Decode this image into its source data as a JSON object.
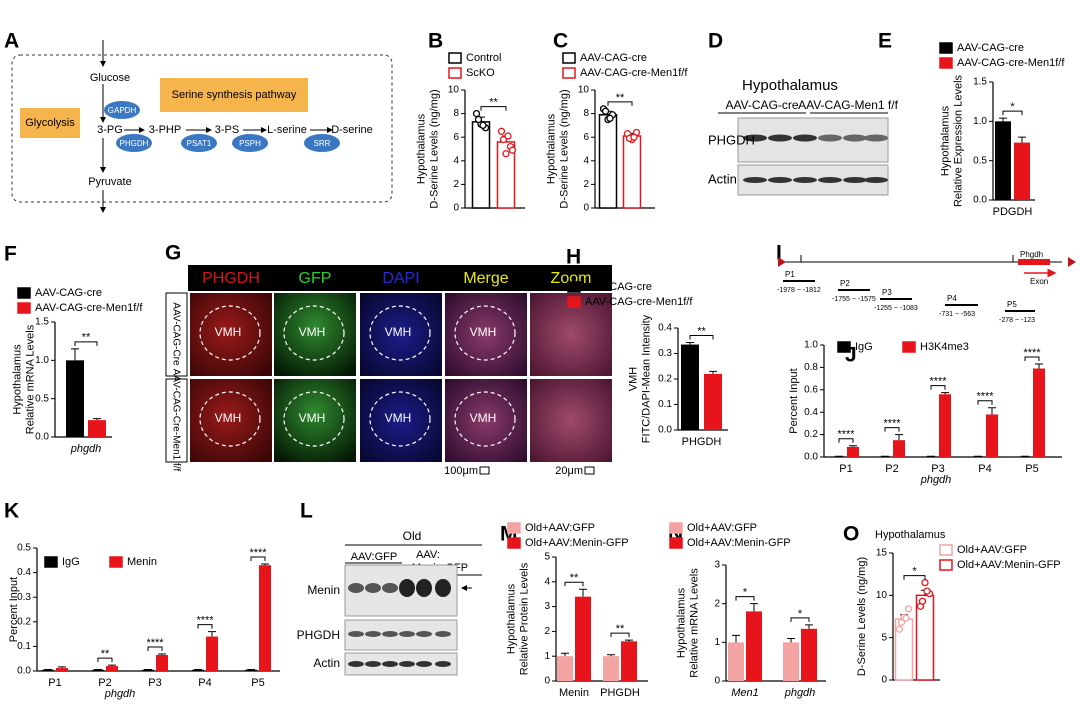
{
  "diagram": {
    "label": "A",
    "glycolysis_label": "Glycolysis",
    "pathway_label": "Serine synthesis pathway",
    "metabolites": [
      "Glucose",
      "3-PG",
      "3-PHP",
      "3-PS",
      "L-serine",
      "D-serine",
      "Pyruvate"
    ],
    "enzymes": [
      "GAPDH",
      "PHGDH",
      "PSAT1",
      "PSPH",
      "SRR"
    ]
  },
  "blot_d": {
    "label": "D",
    "title": "Hypothalamus",
    "groups": [
      "AAV-CAG-cre",
      "AAV-CAG-Men1 f/f"
    ],
    "proteins": [
      "PHGDH",
      "Actin"
    ]
  },
  "images_g": {
    "label": "G",
    "channels": [
      "PHGDH",
      "GFP",
      "DAPI",
      "Merge",
      "Zoom"
    ],
    "rows": [
      "AAV-CAG-Cre",
      "AAV-CAG-Cre-Men1 f/f"
    ],
    "region": "VMH",
    "scale_bars": [
      "100μm",
      "20μm"
    ]
  },
  "gene_map_i": {
    "label": "I",
    "gene": "Phgdh",
    "exon": "Exon",
    "primers": [
      {
        "name": "P1",
        "range": "-1978 ~ -1812"
      },
      {
        "name": "P2",
        "range": "-1755 ~ -1575"
      },
      {
        "name": "P3",
        "range": "-1255 ~ -1083"
      },
      {
        "name": "P4",
        "range": "-731 ~ -563"
      },
      {
        "name": "P5",
        "range": "-278 ~ -123"
      }
    ]
  },
  "blot_l": {
    "label": "L",
    "title": "Old",
    "groups": [
      [
        "AAV:GFP"
      ],
      [
        "AAV:",
        "Menin-GFP"
      ]
    ],
    "proteins": [
      "Menin",
      "PHGDH",
      "Actin"
    ]
  },
  "chart_data": [
    {
      "label": "B",
      "type": "bar",
      "ylabel": [
        "Hypothalamus",
        "D-Serine Levels (ng/mg)"
      ],
      "categories": [
        null
      ],
      "series": [
        {
          "name": "Control",
          "color": "#000000",
          "fill": "#ffffff",
          "values": [
            7.3
          ],
          "errors": [
            0.4
          ],
          "points": [
            8.0,
            7.1,
            6.8,
            7.5,
            7.0
          ]
        },
        {
          "name": "ScKO",
          "color": "#e8141c",
          "fill": "#ffffff",
          "values": [
            5.6
          ],
          "errors": [
            0.5
          ],
          "points": [
            6.5,
            4.6,
            5.2,
            5.8,
            6.1,
            4.9
          ]
        }
      ],
      "ylim": [
        0,
        10
      ],
      "yticks": [
        0,
        2,
        4,
        6,
        8,
        10
      ],
      "annotations": [
        "**"
      ]
    },
    {
      "label": "C",
      "type": "bar",
      "ylabel": [
        "Hypothalamus",
        "D-Serine Levels (ng/mg)"
      ],
      "categories": [
        null
      ],
      "series": [
        {
          "name": "AAV-CAG-cre",
          "color": "#000000",
          "fill": "#ffffff",
          "values": [
            7.9
          ],
          "errors": [
            0.3
          ],
          "points": [
            8.4,
            7.5,
            7.9,
            8.2,
            7.6
          ]
        },
        {
          "name": "AAV-CAG-cre-Men1f/f",
          "color": "#e8141c",
          "fill": "#ffffff",
          "values": [
            6.1
          ],
          "errors": [
            0.2
          ],
          "points": [
            6.3,
            5.8,
            6.4,
            5.9,
            6.0
          ]
        }
      ],
      "ylim": [
        0,
        10
      ],
      "yticks": [
        0,
        2,
        4,
        6,
        8,
        10
      ],
      "annotations": [
        "**"
      ]
    },
    {
      "label": "E",
      "type": "bar",
      "ylabel": [
        "Hypothalamus",
        "Relative Expression Levels"
      ],
      "categories": [
        "PDGDH"
      ],
      "series": [
        {
          "name": "AAV-CAG-cre",
          "color": "#000000",
          "values": [
            1.0
          ],
          "errors": [
            0.04
          ]
        },
        {
          "name": "AAV-CAG-cre-Men1f/f",
          "color": "#e8141c",
          "values": [
            0.73
          ],
          "errors": [
            0.07
          ]
        }
      ],
      "ylim": [
        0,
        1.5
      ],
      "yticks": [
        {
          "value": 0,
          "label": "0.0"
        },
        0.5,
        {
          "value": 1,
          "label": "1.0"
        },
        1.5
      ],
      "annotations": [
        "*"
      ]
    },
    {
      "label": "F",
      "type": "bar",
      "ylabel": [
        "Hypothalamus",
        "Relative mRNA Levels"
      ],
      "categories": [
        "phgdh"
      ],
      "series": [
        {
          "name": "AAV-CAG-cre",
          "color": "#000000",
          "values": [
            1.0
          ],
          "errors": [
            0.15
          ]
        },
        {
          "name": "AAV-CAG-cre-Men1f/f",
          "color": "#e8141c",
          "values": [
            0.22
          ],
          "errors": [
            0.02
          ]
        }
      ],
      "ylim": [
        0,
        1.5
      ],
      "yticks": [
        {
          "value": 0,
          "label": "0.0"
        },
        0.5,
        {
          "value": 1,
          "label": "1.0"
        },
        1.5
      ],
      "annotations": [
        "**"
      ]
    },
    {
      "label": "H",
      "type": "bar",
      "ylabel": [
        "VMH",
        "FITC/DAPI-Mean Intensity"
      ],
      "categories": [
        "PHGDH"
      ],
      "series": [
        {
          "name": "AAV-CAG-cre",
          "color": "#000000",
          "values": [
            0.335
          ],
          "errors": [
            0.008
          ]
        },
        {
          "name": "AAV-CAG-cre-Men1f/f",
          "color": "#e8141c",
          "values": [
            0.22
          ],
          "errors": [
            0.01
          ]
        }
      ],
      "ylim": [
        0,
        0.4
      ],
      "yticks": [
        {
          "value": 0,
          "label": "0.0"
        },
        0.1,
        0.2,
        0.3,
        0.4
      ],
      "annotations": [
        "**"
      ]
    },
    {
      "label": "J",
      "type": "bar",
      "ylabel": "Percent Input",
      "xlabel": "phgdh",
      "categories": [
        "P1",
        "P2",
        "P3",
        "P4",
        "P5"
      ],
      "series": [
        {
          "name": "IgG",
          "color": "#000000",
          "values": [
            0.005,
            0.005,
            0.005,
            0.005,
            0.005
          ],
          "errors": [
            0.002,
            0.002,
            0.002,
            0.002,
            0.002
          ]
        },
        {
          "name": "H3K4me3",
          "color": "#e8141c",
          "values": [
            0.09,
            0.15,
            0.56,
            0.38,
            0.79
          ],
          "errors": [
            0.01,
            0.05,
            0.015,
            0.06,
            0.04
          ]
        }
      ],
      "ylim": [
        0,
        1
      ],
      "yticks": [
        {
          "value": 0,
          "label": "0.0"
        },
        0.2,
        0.4,
        0.6,
        0.8,
        {
          "value": 1,
          "label": "1.0"
        }
      ],
      "annotations": [
        "****",
        "****",
        "****",
        "****",
        "****"
      ]
    },
    {
      "label": "K",
      "type": "bar",
      "ylabel": "Percent Input",
      "xlabel": "phgdh",
      "categories": [
        "P1",
        "P2",
        "P3",
        "P4",
        "P5"
      ],
      "series": [
        {
          "name": "IgG",
          "color": "#000000",
          "values": [
            0.005,
            0.005,
            0.005,
            0.005,
            0.005
          ],
          "errors": [
            0.001,
            0.001,
            0.001,
            0.001,
            0.001
          ]
        },
        {
          "name": "Menin",
          "color": "#e8141c",
          "values": [
            0.012,
            0.02,
            0.065,
            0.14,
            0.43
          ],
          "errors": [
            0.005,
            0.004,
            0.004,
            0.02,
            0.005
          ]
        }
      ],
      "ylim": [
        0,
        0.5
      ],
      "yticks": [
        {
          "value": 0,
          "label": "0.0"
        },
        0.1,
        0.2,
        0.3,
        0.4,
        0.5
      ],
      "annotations": [
        "**",
        "****",
        "****",
        "****"
      ]
    },
    {
      "label": "M",
      "type": "bar",
      "ylabel": [
        "Hypothalamus",
        "Relative Protein Levels"
      ],
      "categories": [
        "Menin",
        "PHGDH"
      ],
      "series": [
        {
          "name": "Old+AAV:GFP",
          "color": "#f4a3a3",
          "values": [
            1.0,
            1.0
          ],
          "errors": [
            0.12,
            0.06
          ]
        },
        {
          "name": "Old+AAV:Menin-GFP",
          "color": "#e8141c",
          "values": [
            3.4,
            1.6
          ],
          "errors": [
            0.3,
            0.05
          ]
        }
      ],
      "ylim": [
        0,
        5
      ],
      "yticks": [
        0,
        1,
        2,
        3,
        4,
        5
      ],
      "annotations": [
        "**",
        "**"
      ]
    },
    {
      "label": "N",
      "type": "bar",
      "ylabel": [
        "Hypothalamus",
        "Relative mRNA Levels"
      ],
      "categories": [
        "Men1",
        "phgdh"
      ],
      "series": [
        {
          "name": "Old+AAV:GFP",
          "color": "#f4a3a3",
          "values": [
            1.0,
            1.0
          ],
          "errors": [
            0.18,
            0.1
          ]
        },
        {
          "name": "Old+AAV:Menin-GFP",
          "color": "#e8141c",
          "values": [
            1.8,
            1.35
          ],
          "errors": [
            0.2,
            0.1
          ]
        }
      ],
      "ylim": [
        0,
        3
      ],
      "yticks": [
        0,
        1,
        2,
        3
      ],
      "annotations": [
        "*",
        "*"
      ]
    },
    {
      "label": "O",
      "type": "bar",
      "title": "Hypothalamus",
      "ylabel": "D-Serine Levels (ng/mg)",
      "categories": [
        null
      ],
      "series": [
        {
          "name": "Old+AAV:GFP",
          "color": "#f4a3a3",
          "fill": "#ffffff",
          "values": [
            7.2
          ],
          "errors": [
            0.5
          ],
          "points": [
            6.0,
            7.4,
            8.4,
            6.8,
            7.3
          ]
        },
        {
          "name": "Old+AAV:Menin-GFP",
          "color": "#e8141c",
          "fill": "#ffffff",
          "values": [
            10.0
          ],
          "errors": [
            0.6
          ],
          "points": [
            8.7,
            11.5,
            10.2,
            9.3,
            10.5
          ]
        }
      ],
      "ylim": [
        0,
        15
      ],
      "yticks": [
        0,
        5,
        10,
        15
      ],
      "annotations": [
        "*"
      ]
    }
  ]
}
